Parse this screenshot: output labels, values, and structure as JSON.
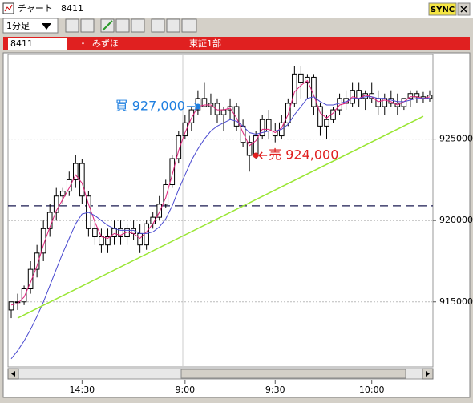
{
  "window": {
    "title": "チャート",
    "symbol": "8411",
    "sync": "SYNC"
  },
  "toolbar": {
    "interval": "1分足"
  },
  "info": {
    "code": "8411",
    "name": "みずほ",
    "market": "東証1部"
  },
  "chart_data": {
    "type": "candlestick",
    "categories": [
      null,
      null,
      null,
      null,
      null,
      null,
      null,
      null,
      null,
      null,
      null,
      "14:30",
      null,
      null,
      null,
      null,
      null,
      null,
      null,
      null,
      null,
      null,
      null,
      null,
      null,
      null,
      null,
      "9:00",
      null,
      null,
      null,
      null,
      null,
      null,
      null,
      null,
      null,
      null,
      null,
      null,
      null,
      "9:30",
      null,
      null,
      null,
      null,
      null,
      null,
      null,
      null,
      null,
      null,
      null,
      null,
      null,
      null,
      "10:00",
      null,
      null,
      null,
      null,
      null,
      null,
      null,
      null,
      null
    ],
    "open": [
      914500,
      915000,
      915000,
      915800,
      917000,
      918000,
      919500,
      920500,
      921500,
      921800,
      922500,
      923500,
      921500,
      919500,
      919000,
      918500,
      919000,
      919500,
      919000,
      919500,
      919200,
      918500,
      919800,
      920200,
      921000,
      922200,
      923800,
      925200,
      926000,
      926800,
      927500,
      927000,
      927200,
      926500,
      926800,
      927000,
      925800,
      924800,
      924000,
      925200,
      926200,
      925500,
      925200,
      926000,
      927200,
      929000,
      928500,
      928800,
      927000,
      925800,
      926200,
      926800,
      927500,
      927200,
      928000,
      927500,
      927800,
      927500,
      927000,
      927500,
      927200,
      927000,
      927500,
      927800,
      927600,
      927500
    ],
    "high": [
      915000,
      915500,
      916000,
      917500,
      918500,
      920000,
      921000,
      922000,
      922000,
      923000,
      924000,
      923800,
      921800,
      920000,
      919500,
      919500,
      920000,
      920000,
      919800,
      920000,
      919800,
      920000,
      920500,
      921500,
      922500,
      924000,
      925500,
      926500,
      927000,
      928000,
      928500,
      927800,
      927500,
      927000,
      927500,
      927200,
      926200,
      925200,
      925500,
      926500,
      926800,
      926000,
      926500,
      927500,
      929500,
      929500,
      929000,
      929000,
      927200,
      926500,
      927000,
      927800,
      928000,
      928500,
      928500,
      928000,
      928500,
      928000,
      927800,
      928000,
      927800,
      927500,
      928000,
      928000,
      927900,
      928000
    ],
    "low": [
      914000,
      914500,
      914800,
      915500,
      916500,
      917500,
      919000,
      920000,
      921000,
      921500,
      922000,
      921000,
      919000,
      918500,
      918000,
      918000,
      918500,
      918500,
      918500,
      918800,
      918000,
      918200,
      919500,
      920000,
      920800,
      922000,
      923500,
      925000,
      925500,
      926500,
      927000,
      926500,
      926000,
      925500,
      926200,
      925500,
      924500,
      923000,
      923800,
      925000,
      925000,
      924800,
      925000,
      925800,
      927000,
      927500,
      927500,
      926500,
      925200,
      925000,
      926000,
      926500,
      926800,
      927000,
      927000,
      926800,
      927200,
      926500,
      926500,
      927000,
      926500,
      926800,
      927000,
      927200,
      927200,
      927300
    ],
    "close": [
      915000,
      915000,
      915800,
      917000,
      918000,
      919500,
      920500,
      921500,
      921800,
      922500,
      923500,
      921500,
      919500,
      919000,
      918500,
      919000,
      919500,
      919000,
      919500,
      919200,
      918500,
      919800,
      920200,
      921000,
      922200,
      923800,
      925200,
      926000,
      926800,
      927500,
      927000,
      927200,
      926500,
      926800,
      927000,
      925800,
      924800,
      924000,
      925200,
      926200,
      925500,
      925200,
      926000,
      927200,
      929000,
      928500,
      928800,
      927000,
      925800,
      926200,
      926800,
      927500,
      927200,
      928000,
      927500,
      927800,
      927500,
      927000,
      927500,
      927200,
      927000,
      927500,
      927800,
      927600,
      927500,
      927700
    ],
    "series": [
      {
        "color": "#e0207a",
        "values": [
          914800,
          914900,
          915300,
          916200,
          917200,
          918500,
          919600,
          920600,
          921300,
          922000,
          922800,
          922300,
          921000,
          919900,
          919000,
          918900,
          919200,
          919100,
          919300,
          919200,
          918900,
          919300,
          919800,
          920500,
          921400,
          922800,
          924300,
          925400,
          926300,
          927000,
          927100,
          927100,
          926800,
          926800,
          926900,
          926300,
          925400,
          924600,
          924900,
          925600,
          925600,
          925400,
          925700,
          926500,
          927900,
          928300,
          928600,
          927700,
          926600,
          926300,
          926600,
          927100,
          927200,
          927600,
          927500,
          927700,
          927600,
          927300,
          927400,
          927300,
          927100,
          927300,
          927600,
          927600,
          927500,
          927600
        ]
      },
      {
        "color": "#4a4ad0",
        "values": [
          911500,
          912000,
          912600,
          913300,
          914100,
          915000,
          916000,
          917000,
          918000,
          918900,
          919800,
          920400,
          920500,
          920300,
          920000,
          919700,
          919500,
          919400,
          919400,
          919400,
          919200,
          919200,
          919300,
          919600,
          920100,
          920900,
          921900,
          922800,
          923700,
          924400,
          925000,
          925500,
          925800,
          926000,
          926200,
          926100,
          925800,
          925400,
          925300,
          925400,
          925500,
          925500,
          925600,
          925900,
          926500,
          927000,
          927500,
          927600,
          927300,
          927100,
          927100,
          927200,
          927300,
          927500,
          927500,
          927600,
          927600,
          927500,
          927500,
          927400,
          927300,
          927300,
          927400,
          927500,
          927500,
          927500
        ]
      }
    ],
    "trend_line": {
      "color": "#99e633",
      "points": [
        {
          "index": 1,
          "value": 914000
        },
        {
          "index": 64,
          "value": 926400
        }
      ]
    },
    "ref_line": {
      "value": 920900,
      "color": "#1a1a50"
    },
    "annotations": [
      {
        "label": "買 927,000",
        "value": 927000,
        "index": 29,
        "side": "left",
        "color": "#1e7fe0"
      },
      {
        "label": "売 924,000",
        "value": 924000,
        "index": 38,
        "side": "right",
        "color": "#e02020"
      }
    ],
    "ylim": [
      911000,
      930200
    ],
    "yticks": [
      915000,
      920000,
      925000
    ],
    "grid": true
  }
}
